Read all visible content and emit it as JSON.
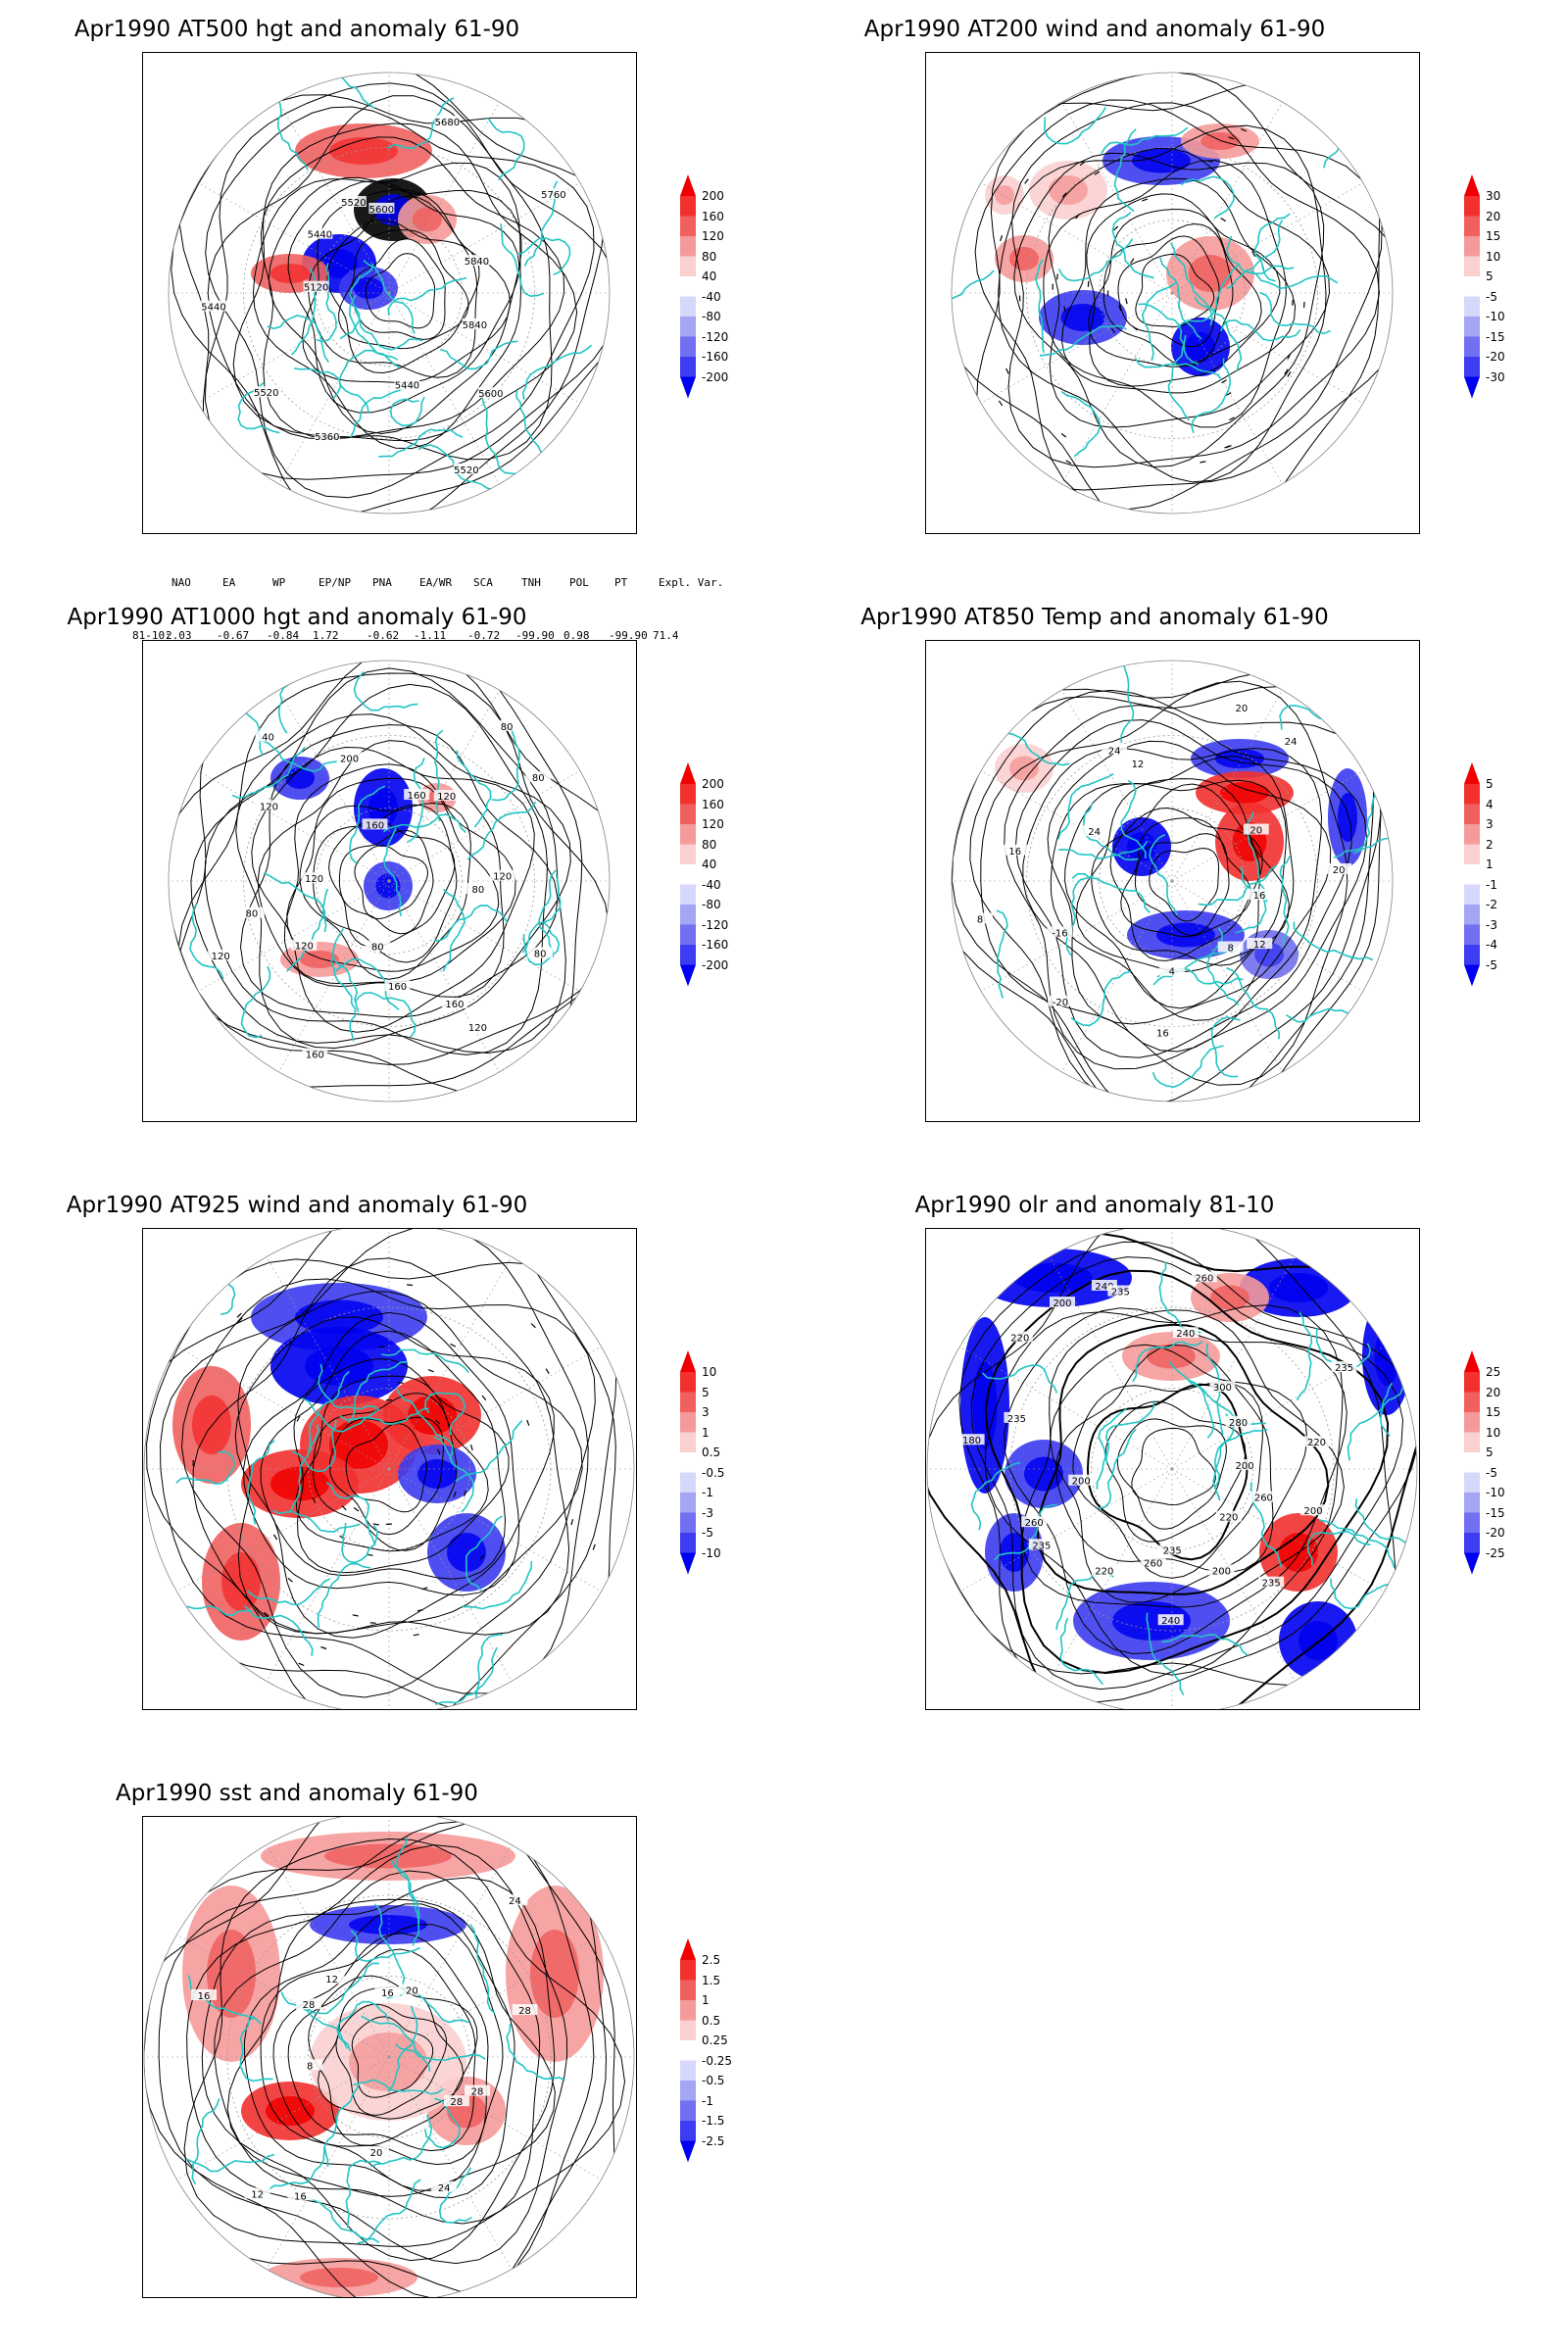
{
  "panels": [
    {
      "title": "Apr1990 AT500 hgt and anomaly 61-90",
      "colorbar": [
        "200",
        "160",
        "120",
        "80",
        "40",
        "-40",
        "-80",
        "-120",
        "-160",
        "-200"
      ],
      "contour_labels": [
        "5840",
        "5600",
        "5520",
        "5440",
        "5360",
        "5520",
        "5440",
        "5120",
        "5440",
        "5520",
        "5600",
        "5680",
        "5760",
        "5840"
      ]
    },
    {
      "title": "Apr1990 AT200 wind and anomaly 61-90",
      "colorbar": [
        "30",
        "20",
        "15",
        "10",
        "5",
        "-5",
        "-10",
        "-15",
        "-20",
        "-30"
      ],
      "contour_labels": []
    },
    {
      "title": "Apr1990 AT1000 hgt and anomaly 61-90",
      "colorbar": [
        "200",
        "160",
        "120",
        "80",
        "40",
        "-40",
        "-80",
        "-120",
        "-160",
        "-200"
      ],
      "contour_labels": [
        "80",
        "80",
        "120",
        "160",
        "160",
        "80",
        "160",
        "120",
        "120",
        "80",
        "120",
        "120",
        "40",
        "160",
        "200",
        "160",
        "120",
        "80",
        "80",
        "120"
      ]
    },
    {
      "title": "Apr1990 AT850 Temp and anomaly 61-90",
      "colorbar": [
        "5",
        "4",
        "3",
        "2",
        "1",
        "-1",
        "-2",
        "-3",
        "-4",
        "-5"
      ],
      "contour_labels": [
        "16",
        "12",
        "8",
        "4",
        "16",
        "-20",
        "-16",
        "8",
        "16",
        "24",
        "24",
        "12",
        "20",
        "24",
        "20",
        "20"
      ]
    },
    {
      "title": "Apr1990 AT925 wind and anomaly 61-90",
      "colorbar": [
        "10",
        "5",
        "3",
        "1",
        "0.5",
        "-0.5",
        "-1",
        "-3",
        "-5",
        "-10"
      ],
      "contour_labels": []
    },
    {
      "title": "Apr1990 olr and anomaly 81-10",
      "colorbar": [
        "25",
        "20",
        "15",
        "10",
        "5",
        "-5",
        "-10",
        "-15",
        "-20",
        "-25"
      ],
      "contour_labels": [
        "260",
        "200",
        "220",
        "235",
        "200",
        "235",
        "240",
        "260",
        "220",
        "235",
        "260",
        "200",
        "180",
        "235",
        "220",
        "200",
        "240",
        "235",
        "260",
        "240",
        "300",
        "280",
        "235",
        "220",
        "200"
      ]
    },
    {
      "title": "Apr1990 sst and anomaly 61-90",
      "colorbar": [
        "2.5",
        "1.5",
        "1",
        "0.5",
        "0.25",
        "-0.25",
        "-0.5",
        "-1",
        "-1.5",
        "-2.5"
      ],
      "contour_labels": [
        "28",
        "28",
        "24",
        "20",
        "16",
        "12",
        "8",
        "16",
        "28",
        "12",
        "16",
        "20",
        "24",
        "28"
      ]
    }
  ],
  "teleconnections": {
    "headers": [
      "NAO",
      "EA",
      "WP",
      "EP/NP",
      "PNA",
      "EA/WR",
      "SCA",
      "TNH",
      "POL",
      "PT",
      "Expl. Var."
    ],
    "row_label": "81-10:",
    "values": [
      "2.03",
      "-0.67",
      "-0.84",
      "1.72",
      "-0.62",
      "-1.11",
      "-0.72",
      "-99.90",
      "0.98",
      "-99.90",
      "71.4"
    ]
  },
  "colors": {
    "coast": "#22c4c4",
    "contour": "#000000",
    "warm": [
      "#f00000",
      "#f23030",
      "#f06060",
      "#f59a9a",
      "#fbd0d0"
    ],
    "cool": [
      "#d7d7fb",
      "#a5a5f5",
      "#7070f0",
      "#3c3cf0",
      "#0000f0"
    ]
  }
}
